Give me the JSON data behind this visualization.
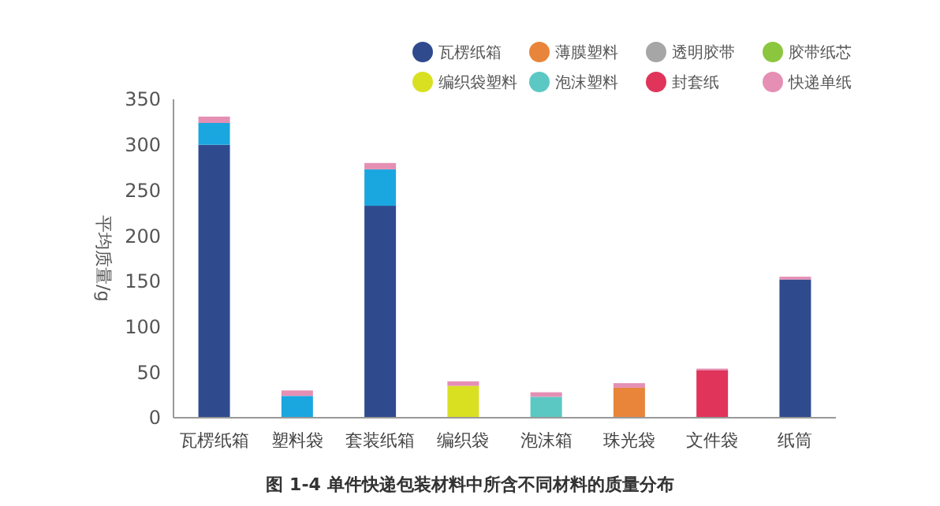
{
  "chart_data": {
    "type": "bar",
    "stacked": true,
    "title": "图 1-4 单件快递包装材料中所含不同材料的质量分布",
    "ylabel": "平均质量/g",
    "categories": [
      "瓦楞纸箱",
      "塑料袋",
      "套装纸箱",
      "编织袋",
      "泡沫箱",
      "珠光袋",
      "文件袋",
      "纸筒"
    ],
    "series": [
      {
        "name": "瓦楞纸箱",
        "color": "#2f4b8e",
        "values": [
          300,
          null,
          233,
          null,
          null,
          null,
          null,
          152
        ]
      },
      {
        "name": "薄膜塑料",
        "color": "#e8853a",
        "values": [
          null,
          null,
          null,
          null,
          null,
          33,
          null,
          null
        ]
      },
      {
        "name": "透明胶带",
        "color": "#a6a6a6",
        "values": [
          null,
          null,
          null,
          null,
          null,
          null,
          null,
          null
        ]
      },
      {
        "name": "胶带纸芯",
        "color": "#8cc63f",
        "values": [
          null,
          null,
          null,
          null,
          null,
          null,
          null,
          null
        ]
      },
      {
        "name": "编织袋塑料",
        "color": "#d9e021",
        "values": [
          null,
          null,
          null,
          35,
          null,
          null,
          null,
          null
        ]
      },
      {
        "name": "泡沫塑料",
        "color": "#5cc8c4",
        "values": [
          null,
          null,
          null,
          null,
          23,
          null,
          null,
          null
        ]
      },
      {
        "name": "封套纸",
        "color": "#e0345a",
        "values": [
          null,
          null,
          null,
          null,
          null,
          null,
          52,
          null
        ]
      },
      {
        "color": "#1aa7e0",
        "values": [
          24,
          24,
          40,
          null,
          null,
          null,
          null,
          null
        ]
      },
      {
        "name": "快递单纸",
        "color": "#e58fb4",
        "values": [
          7,
          6,
          7,
          5,
          5,
          5,
          2,
          3
        ]
      }
    ],
    "ylim": [
      0,
      350
    ],
    "yticks": [
      0,
      50,
      100,
      150,
      200,
      250,
      300,
      350
    ],
    "grid": false,
    "legend": "top right",
    "marker": "circle"
  }
}
